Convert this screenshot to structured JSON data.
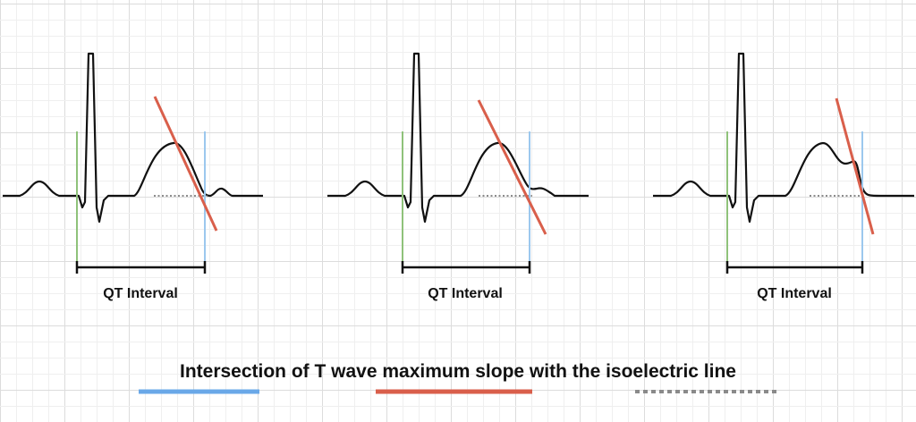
{
  "colors": {
    "grid_minor": "#efefef",
    "grid_major": "#dcdcdc",
    "trace": "#111111",
    "q_onset_line": "#8fc27a",
    "t_end_line": "#9cc8ee",
    "tangent_line": "#d95f4b",
    "baseline_dotted": "#666666",
    "caption_blue": "#6aa8e8",
    "caption_red": "#d95f4b",
    "caption_gray": "#8a8a8a"
  },
  "panels": [
    {
      "interval_label": "QT Interval"
    },
    {
      "interval_label": "QT Interval"
    },
    {
      "interval_label": "QT Interval"
    }
  ],
  "caption": {
    "text": "Intersection of T wave maximum slope with the isoelectric line"
  }
}
